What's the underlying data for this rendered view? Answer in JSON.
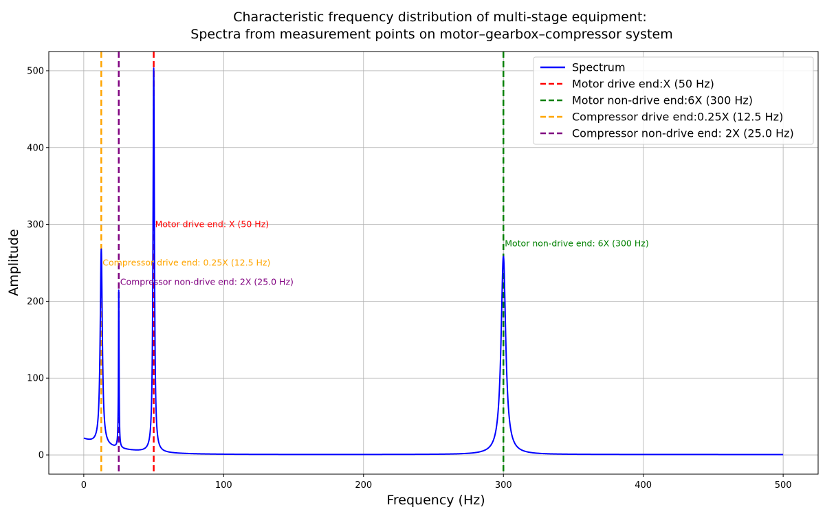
{
  "chart_data": {
    "type": "line",
    "title_lines": [
      "Characteristic frequency distribution of multi-stage equipment:",
      "Spectra from measurement points on motor–gearbox–compressor system"
    ],
    "xlabel": "Frequency (Hz)",
    "ylabel": "Amplitude",
    "xlim": [
      -25,
      525
    ],
    "ylim": [
      -25,
      525
    ],
    "xticks": [
      0,
      100,
      200,
      300,
      400,
      500
    ],
    "yticks": [
      0,
      100,
      200,
      300,
      400,
      500
    ],
    "grid": true,
    "legend_position": "top-right",
    "series": [
      {
        "name": "Spectrum",
        "color": "#0000ff",
        "baseline": 0.5,
        "low_freq_offset": 20,
        "low_freq_decay_hz": 25,
        "peaks": [
          {
            "freq": 12.5,
            "amplitude": 255,
            "width": 0.9
          },
          {
            "freq": 25.0,
            "amplitude": 205,
            "width": 0.25
          },
          {
            "freq": 50.0,
            "amplitude": 500,
            "width": 0.6
          },
          {
            "freq": 300.0,
            "amplitude": 258,
            "width": 2.0
          }
        ]
      }
    ],
    "markers": [
      {
        "legend": "Motor drive end:X (50 Hz)",
        "freq": 50,
        "color": "#ff0000",
        "annotation": "Motor drive end: X (50 Hz)",
        "annotation_y": 300
      },
      {
        "legend": "Motor non-drive end:6X (300 Hz)",
        "freq": 300,
        "color": "#008000",
        "annotation": "Motor non-drive end: 6X (300 Hz)",
        "annotation_y": 275
      },
      {
        "legend": "Compressor drive end:0.25X (12.5 Hz)",
        "freq": 12.5,
        "color": "#ffa500",
        "annotation": "Compressor drive end: 0.25X (12.5 Hz)",
        "annotation_y": 250
      },
      {
        "legend": "Compressor non-drive end: 2X (25.0 Hz)",
        "freq": 25,
        "color": "#800080",
        "annotation": "Compressor non-drive end: 2X (25.0 Hz)",
        "annotation_y": 225
      }
    ]
  }
}
